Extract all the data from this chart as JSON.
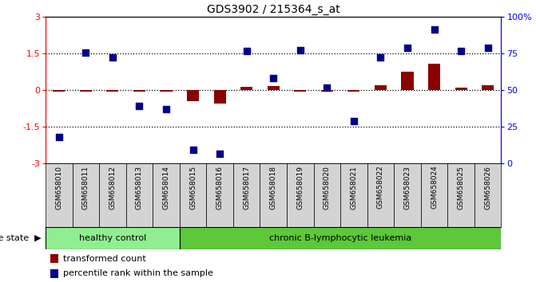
{
  "title": "GDS3902 / 215364_s_at",
  "samples": [
    "GSM658010",
    "GSM658011",
    "GSM658012",
    "GSM658013",
    "GSM658014",
    "GSM658015",
    "GSM658016",
    "GSM658017",
    "GSM658018",
    "GSM658019",
    "GSM658020",
    "GSM658021",
    "GSM658022",
    "GSM658023",
    "GSM658024",
    "GSM658025",
    "GSM658026"
  ],
  "transformed_count": [
    -0.05,
    -0.07,
    -0.05,
    -0.05,
    -0.05,
    -0.45,
    -0.55,
    0.15,
    0.18,
    -0.05,
    -0.05,
    -0.05,
    0.2,
    0.75,
    1.1,
    0.1,
    0.2
  ],
  "percentile_rank_left": [
    -1.9,
    1.55,
    1.35,
    -0.65,
    -0.78,
    -2.45,
    -2.6,
    1.6,
    0.5,
    1.65,
    0.1,
    -1.25,
    1.35,
    1.75,
    2.5,
    1.6,
    1.75
  ],
  "healthy_count": 5,
  "bar_color": "#8B0000",
  "point_color": "#00008B",
  "healthy_bg": "#90EE90",
  "leukemia_bg": "#5CC83A",
  "sample_bg": "#D3D3D3",
  "healthy_label": "healthy control",
  "leukemia_label": "chronic B-lymphocytic leukemia",
  "disease_label": "disease state",
  "legend_bar": "transformed count",
  "legend_point": "percentile rank within the sample",
  "left_ticks": [
    -3,
    -1.5,
    0,
    1.5,
    3
  ],
  "left_tick_labels": [
    "-3",
    "-1.5",
    "0",
    "1.5",
    "3"
  ],
  "right_tick_positions": [
    -3,
    -1.5,
    0,
    1.5,
    3
  ],
  "right_tick_labels": [
    "0",
    "25",
    "50",
    "75",
    "100%"
  ]
}
